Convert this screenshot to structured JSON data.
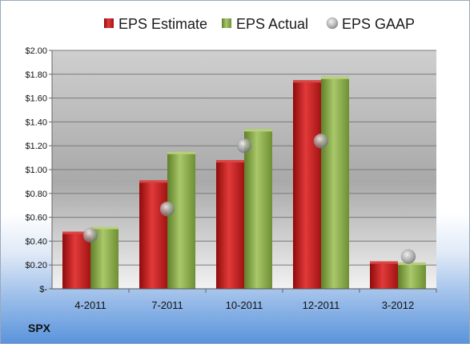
{
  "chart_data": {
    "type": "bar",
    "categories": [
      "4-2011",
      "7-2011",
      "10-2011",
      "12-2011",
      "3-2012"
    ],
    "series": [
      {
        "name": "EPS Estimate",
        "type": "bar",
        "color": "#cc1f1f",
        "values": [
          0.48,
          0.91,
          1.08,
          1.75,
          0.23
        ]
      },
      {
        "name": "EPS Actual",
        "type": "bar",
        "color": "#8fb14a",
        "values": [
          0.52,
          1.15,
          1.34,
          1.78,
          0.22
        ]
      },
      {
        "name": "EPS GAAP",
        "type": "scatter",
        "color": "#9a9a9a",
        "values": [
          0.45,
          0.67,
          1.2,
          1.24,
          0.27
        ]
      }
    ],
    "y_ticks": [
      "$-",
      "$0.20",
      "$0.40",
      "$0.60",
      "$0.80",
      "$1.00",
      "$1.20",
      "$1.40",
      "$1.60",
      "$1.80",
      "$2.00"
    ],
    "ylim": [
      0,
      2.0
    ],
    "grid": true,
    "legend_position": "top"
  },
  "ticker": "SPX"
}
